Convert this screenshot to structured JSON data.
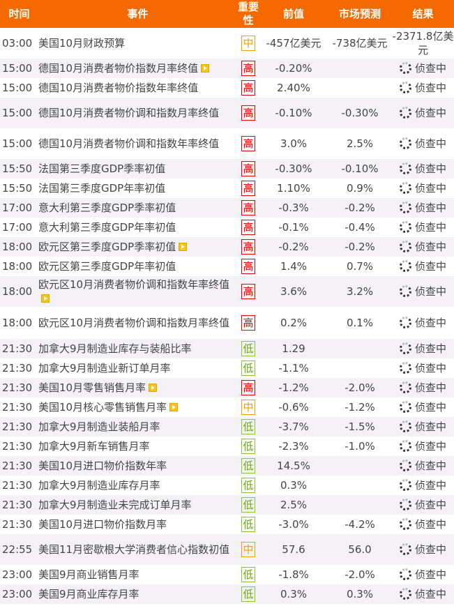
{
  "header": {
    "time": "时间",
    "event": "事件",
    "importance": "重要性",
    "previous": "前值",
    "forecast": "市场预测",
    "result": "结果"
  },
  "rows": [
    {
      "time": "03:00",
      "event": "美国10月财政预算",
      "video": false,
      "importance": "中",
      "previous": "-457亿美元",
      "forecast": "-738亿美元",
      "result": "-2371.8亿美元",
      "pending": false
    },
    {
      "time": "15:00",
      "event": "德国10月消费者物价指数月率终值",
      "video": true,
      "importance": "高",
      "previous": "-0.20%",
      "forecast": "",
      "result": "侦查中",
      "pending": true
    },
    {
      "time": "15:00",
      "event": "德国10月消费者物价指数年率终值",
      "video": false,
      "importance": "高",
      "previous": "2.40%",
      "forecast": "",
      "result": "侦查中",
      "pending": true
    },
    {
      "time": "15:00",
      "event": "德国10月消费者物价调和指数月率终值",
      "video": false,
      "importance": "高",
      "previous": "-0.10%",
      "forecast": "-0.30%",
      "result": "侦查中",
      "pending": true
    },
    {
      "time": "15:00",
      "event": "德国10月消费者物价调和指数年率终值",
      "video": false,
      "importance": "高",
      "previous": "3.0%",
      "forecast": "2.5%",
      "result": "侦查中",
      "pending": true
    },
    {
      "time": "15:50",
      "event": "法国第三季度GDP季率初值",
      "video": false,
      "importance": "高",
      "previous": "-0.30%",
      "forecast": "-0.10%",
      "result": "侦查中",
      "pending": true
    },
    {
      "time": "15:50",
      "event": "法国第三季度GDP年率初值",
      "video": false,
      "importance": "高",
      "previous": "1.10%",
      "forecast": "0.9%",
      "result": "侦查中",
      "pending": true
    },
    {
      "time": "17:00",
      "event": "意大利第三季度GDP季率初值",
      "video": false,
      "importance": "高",
      "previous": "-0.3%",
      "forecast": "-0.2%",
      "result": "侦查中",
      "pending": true
    },
    {
      "time": "17:00",
      "event": "意大利第三季度GDP年率初值",
      "video": false,
      "importance": "高",
      "previous": "-0.1%",
      "forecast": "-0.4%",
      "result": "侦查中",
      "pending": true
    },
    {
      "time": "18:00",
      "event": "欧元区第三季度GDP季率初值",
      "video": true,
      "importance": "高",
      "previous": "-0.2%",
      "forecast": "-0.2%",
      "result": "侦查中",
      "pending": true
    },
    {
      "time": "18:00",
      "event": "欧元区第三季度GDP年率初值",
      "video": false,
      "importance": "高",
      "previous": "1.4%",
      "forecast": "0.7%",
      "result": "侦查中",
      "pending": true
    },
    {
      "time": "18:00",
      "event": "欧元区10月消费者物价调和指数年率终值",
      "video": true,
      "importance": "高",
      "previous": "3.6%",
      "forecast": "3.2%",
      "result": "侦查中",
      "pending": true
    },
    {
      "time": "18:00",
      "event": "欧元区10月消费者物价调和指数月率终值",
      "video": false,
      "importance": "高",
      "previous": "0.2%",
      "forecast": "0.1%",
      "result": "侦查中",
      "pending": true
    },
    {
      "time": "21:30",
      "event": "加拿大9月制造业库存与装船比率",
      "video": false,
      "importance": "低",
      "previous": "1.29",
      "forecast": "",
      "result": "侦查中",
      "pending": true
    },
    {
      "time": "21:30",
      "event": "加拿大9月制造业新订单月率",
      "video": false,
      "importance": "低",
      "previous": "-1.1%",
      "forecast": "",
      "result": "侦查中",
      "pending": true
    },
    {
      "time": "21:30",
      "event": "美国10月零售销售月率",
      "video": true,
      "importance": "高",
      "previous": "-1.2%",
      "forecast": "-2.0%",
      "result": "侦查中",
      "pending": true
    },
    {
      "time": "21:30",
      "event": "美国10月核心零售销售月率",
      "video": true,
      "importance": "中",
      "previous": "-0.6%",
      "forecast": "-1.2%",
      "result": "侦查中",
      "pending": true
    },
    {
      "time": "21:30",
      "event": "加拿大9月制造业装船月率",
      "video": false,
      "importance": "低",
      "previous": "-3.7%",
      "forecast": "-1.5%",
      "result": "侦查中",
      "pending": true
    },
    {
      "time": "21:30",
      "event": "加拿大9月新车销售月率",
      "video": false,
      "importance": "低",
      "previous": "-2.3%",
      "forecast": "-1.0%",
      "result": "侦查中",
      "pending": true
    },
    {
      "time": "21:30",
      "event": "美国10月进口物价指数年率",
      "video": false,
      "importance": "低",
      "previous": "14.5%",
      "forecast": "",
      "result": "侦查中",
      "pending": true
    },
    {
      "time": "21:30",
      "event": "加拿大9月制造业库存月率",
      "video": false,
      "importance": "低",
      "previous": "0.3%",
      "forecast": "",
      "result": "侦查中",
      "pending": true
    },
    {
      "time": "21:30",
      "event": "加拿大9月制造业未完成订单月率",
      "video": false,
      "importance": "低",
      "previous": "2.5%",
      "forecast": "",
      "result": "侦查中",
      "pending": true
    },
    {
      "time": "21:30",
      "event": "美国10月进口物价指数月率",
      "video": false,
      "importance": "低",
      "previous": "-3.0%",
      "forecast": "-4.2%",
      "result": "侦查中",
      "pending": true
    },
    {
      "time": "22:55",
      "event": "美国11月密歇根大学消费者信心指数初值",
      "video": false,
      "importance": "中",
      "previous": "57.6",
      "forecast": "56.0",
      "result": "侦查中",
      "pending": true
    },
    {
      "time": "23:00",
      "event": "美国9月商业销售月率",
      "video": false,
      "importance": "低",
      "previous": "-1.8%",
      "forecast": "-2.0%",
      "result": "侦查中",
      "pending": true
    },
    {
      "time": "23:00",
      "event": "美国9月商业库存月率",
      "video": false,
      "importance": "低",
      "previous": "0.3%",
      "forecast": "0.3%",
      "result": "侦查中",
      "pending": true
    }
  ],
  "colors": {
    "header": "#f56a00",
    "high": "#ee0000",
    "medium": "#f5a000",
    "low": "#66aa00"
  }
}
